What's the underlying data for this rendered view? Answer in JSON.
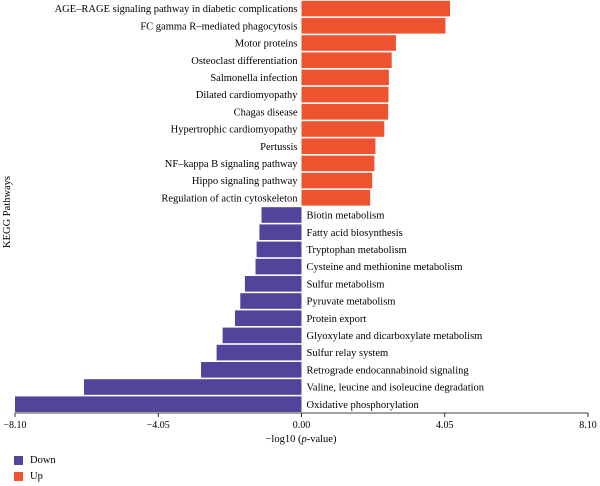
{
  "chart_data": {
    "type": "bar",
    "orientation": "horizontal",
    "ylabel": "KEGG Pathways",
    "xlabel_prefix": "−log10 (",
    "xlabel_italic": "p",
    "xlabel_suffix": "-value)",
    "xlim": [
      -8.1,
      8.1
    ],
    "xticks": [
      -8.1,
      -4.05,
      0.0,
      4.05,
      8.1
    ],
    "xtick_labels": [
      "−8.10",
      "−4.05",
      "0.00",
      "4.05",
      "8.10"
    ],
    "colors": {
      "Up": "#ee5330",
      "Down": "#51449a"
    },
    "legend": [
      {
        "name": "Down",
        "color": "#51449a"
      },
      {
        "name": "Up",
        "color": "#ee5330"
      }
    ],
    "bars": [
      {
        "label": "AGE–RAGE signaling pathway in diabetic complications",
        "value": 4.2,
        "group": "Up"
      },
      {
        "label": "FC gamma R–mediated phagocytosis",
        "value": 4.07,
        "group": "Up"
      },
      {
        "label": "Motor proteins",
        "value": 2.67,
        "group": "Up"
      },
      {
        "label": "Osteoclast differentiation",
        "value": 2.55,
        "group": "Up"
      },
      {
        "label": "Salmonella infection",
        "value": 2.47,
        "group": "Up"
      },
      {
        "label": "Dilated cardiomyopathy",
        "value": 2.46,
        "group": "Up"
      },
      {
        "label": "Chagas disease",
        "value": 2.45,
        "group": "Up"
      },
      {
        "label": "Hypertrophic cardiomyopathy",
        "value": 2.34,
        "group": "Up"
      },
      {
        "label": "Pertussis",
        "value": 2.09,
        "group": "Up"
      },
      {
        "label": "NF–kappa B signaling pathway",
        "value": 2.06,
        "group": "Up"
      },
      {
        "label": "Hippo signaling pathway",
        "value": 2.0,
        "group": "Up"
      },
      {
        "label": "Regulation of actin cytoskeleton",
        "value": 1.94,
        "group": "Up"
      },
      {
        "label": "Biotin metabolism",
        "value": -1.13,
        "group": "Down"
      },
      {
        "label": "Fatty acid biosynthesis",
        "value": -1.19,
        "group": "Down"
      },
      {
        "label": "Tryptophan metabolism",
        "value": -1.27,
        "group": "Down"
      },
      {
        "label": "Cysteine and methionine metabolism",
        "value": -1.3,
        "group": "Down"
      },
      {
        "label": "Sulfur metabolism",
        "value": -1.6,
        "group": "Down"
      },
      {
        "label": "Pyruvate metabolism",
        "value": -1.73,
        "group": "Down"
      },
      {
        "label": "Protein export",
        "value": -1.88,
        "group": "Down"
      },
      {
        "label": "Glyoxylate and dicarboxylate metabolism",
        "value": -2.23,
        "group": "Down"
      },
      {
        "label": "Sulfur relay system",
        "value": -2.4,
        "group": "Down"
      },
      {
        "label": "Retrograde endocannabinoid signaling",
        "value": -2.84,
        "group": "Down"
      },
      {
        "label": "Valine, leucine and isoleucine degradation",
        "value": -6.15,
        "group": "Down"
      },
      {
        "label": "Oxidative phosphorylation",
        "value": -8.1,
        "group": "Down"
      }
    ]
  }
}
